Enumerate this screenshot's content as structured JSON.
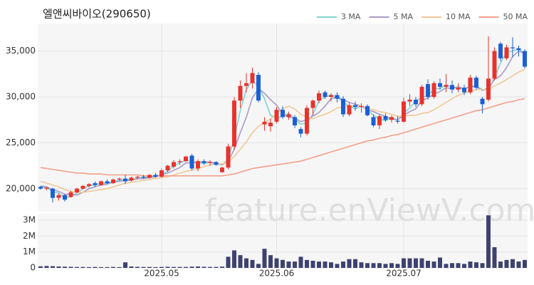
{
  "chart_data": {
    "type": "candlestick",
    "title": "엘앤씨바이오(290650)",
    "watermark": "feature.enViewV.com",
    "up_color": "#e8322c",
    "down_color": "#1a5fd6",
    "volume_color": "#3e4170",
    "grid": true,
    "legend": "top-right",
    "categories": [
      null,
      null,
      null,
      null,
      null,
      null,
      null,
      null,
      null,
      null,
      null,
      null,
      null,
      null,
      null,
      null,
      null,
      null,
      null,
      null,
      "2025.05",
      null,
      null,
      null,
      null,
      null,
      null,
      null,
      null,
      null,
      null,
      null,
      null,
      null,
      null,
      null,
      null,
      null,
      null,
      "2025.06",
      null,
      null,
      null,
      null,
      null,
      null,
      null,
      null,
      null,
      null,
      null,
      null,
      null,
      null,
      null,
      null,
      null,
      null,
      null,
      null,
      "2025.07",
      null,
      null,
      null,
      null,
      null,
      null,
      null,
      null,
      null,
      null,
      null,
      null,
      null,
      null,
      null,
      null,
      null,
      null,
      null,
      null
    ],
    "open": [
      20200,
      20000,
      20000,
      19000,
      19300,
      19100,
      19600,
      20000,
      20300,
      20600,
      20400,
      20800,
      20600,
      21000,
      21100,
      20900,
      21200,
      21300,
      21200,
      21500,
      21300,
      22000,
      22400,
      22900,
      23000,
      23600,
      22200,
      23000,
      22800,
      22900,
      21800,
      22300,
      24600,
      29600,
      31200,
      31500,
      32400,
      27000,
      26800,
      27300,
      28600,
      27800,
      27800,
      26500,
      26000,
      28800,
      29600,
      30500,
      30000,
      30200,
      29800,
      28100,
      29100,
      28900,
      29000,
      27800,
      26900,
      27900,
      27500,
      27400,
      27300,
      29500,
      29700,
      29200,
      31400,
      30000,
      31500,
      31100,
      31300,
      30800,
      31000,
      30500,
      32100,
      29800,
      29700,
      32000,
      35800,
      34200,
      35400,
      35300,
      35000
    ],
    "high": [
      20300,
      20200,
      20100,
      19500,
      19400,
      19800,
      20100,
      20400,
      20600,
      20800,
      20900,
      21000,
      21100,
      21200,
      21500,
      21300,
      21400,
      21500,
      21600,
      21700,
      22200,
      22600,
      23100,
      23200,
      23600,
      23800,
      23200,
      23200,
      23100,
      23000,
      22400,
      24900,
      30000,
      31800,
      32600,
      33200,
      32700,
      27800,
      27600,
      28900,
      29000,
      28400,
      28000,
      26700,
      29100,
      29700,
      30700,
      30700,
      30400,
      30500,
      30100,
      29400,
      29500,
      29300,
      29200,
      28100,
      28100,
      28200,
      28000,
      27900,
      29900,
      30300,
      30000,
      31300,
      31900,
      31700,
      32000,
      32500,
      31800,
      31500,
      31300,
      32400,
      32300,
      30000,
      36600,
      35400,
      36000,
      35700,
      36500,
      35600,
      35200
    ],
    "low": [
      19900,
      19800,
      18500,
      18700,
      18600,
      19000,
      19500,
      19900,
      20100,
      20200,
      20300,
      20500,
      20500,
      20900,
      20500,
      20800,
      21000,
      21100,
      21100,
      21200,
      21200,
      21800,
      22200,
      22600,
      22900,
      22000,
      21900,
      22600,
      22500,
      22500,
      21700,
      22100,
      24200,
      28800,
      30500,
      30900,
      29400,
      26300,
      26200,
      27100,
      27600,
      27500,
      26600,
      25600,
      25800,
      28000,
      29300,
      29800,
      29500,
      29400,
      27800,
      27900,
      28500,
      28300,
      27900,
      26700,
      26500,
      27300,
      27200,
      27100,
      27200,
      29000,
      28900,
      29000,
      29700,
      29800,
      30800,
      30500,
      30400,
      30500,
      30200,
      30300,
      30800,
      28200,
      29500,
      31800,
      33900,
      34000,
      34300,
      34400,
      33100
    ],
    "close": [
      20000,
      20100,
      19000,
      19300,
      18800,
      19600,
      20000,
      20300,
      20500,
      20400,
      20800,
      20600,
      21000,
      21100,
      20800,
      21200,
      21300,
      21200,
      21500,
      21300,
      22000,
      22500,
      22900,
      23000,
      23500,
      22200,
      23000,
      22800,
      22900,
      22600,
      22300,
      24600,
      29600,
      31200,
      31500,
      32600,
      29600,
      27300,
      27200,
      28600,
      27800,
      28100,
      26900,
      26000,
      28800,
      29600,
      30400,
      30000,
      30200,
      29800,
      28100,
      29100,
      28900,
      29000,
      28000,
      26900,
      27900,
      27500,
      27800,
      27300,
      29500,
      29700,
      29200,
      31100,
      30000,
      31500,
      31100,
      31300,
      30800,
      31000,
      30500,
      32100,
      31000,
      29200,
      32000,
      35000,
      34200,
      35400,
      35300,
      35100,
      33300
    ],
    "volume": [
      100000,
      120000,
      110000,
      90000,
      80000,
      70000,
      60000,
      60000,
      50000,
      60000,
      50000,
      50000,
      60000,
      50000,
      350000,
      90000,
      70000,
      60000,
      60000,
      50000,
      60000,
      70000,
      60000,
      60000,
      60000,
      80000,
      90000,
      70000,
      60000,
      60000,
      80000,
      700000,
      1100000,
      800000,
      600000,
      500000,
      250000,
      1200000,
      800000,
      600000,
      500000,
      400000,
      400000,
      700000,
      500000,
      450000,
      400000,
      400000,
      350000,
      250000,
      400000,
      550000,
      550000,
      350000,
      300000,
      300000,
      300000,
      250000,
      300000,
      250000,
      600000,
      600000,
      600000,
      600000,
      450000,
      400000,
      650000,
      250000,
      300000,
      300000,
      250000,
      400000,
      350000,
      300000,
      3300000,
      1300000,
      400000,
      500000,
      550000,
      400000,
      500000
    ],
    "series": [
      {
        "name": "3 MA",
        "color": "#7fd3d3",
        "values": [
          20200,
          20100,
          19700,
          19500,
          19000,
          19200,
          19500,
          20000,
          20300,
          20400,
          20600,
          20600,
          20800,
          20900,
          21000,
          21000,
          21100,
          21200,
          21300,
          21300,
          21600,
          21900,
          22500,
          22800,
          23100,
          22900,
          22900,
          22700,
          22900,
          22800,
          22600,
          23200,
          25500,
          28500,
          30800,
          31800,
          31200,
          29800,
          28000,
          27700,
          27900,
          28200,
          27600,
          27000,
          27200,
          28100,
          29600,
          30000,
          30200,
          30000,
          29400,
          29000,
          28700,
          29000,
          28600,
          28000,
          27600,
          27400,
          27700,
          27500,
          28200,
          28800,
          29500,
          30000,
          30100,
          30900,
          30900,
          31300,
          31100,
          31000,
          30800,
          31200,
          31200,
          30800,
          30700,
          32100,
          33700,
          34900,
          35000,
          35300,
          34600
        ]
      },
      {
        "name": "5 MA",
        "color": "#a79ac8",
        "values": [
          20300,
          20200,
          19900,
          19700,
          19400,
          19400,
          19300,
          19600,
          20000,
          20200,
          20400,
          20500,
          20700,
          20800,
          20900,
          20900,
          21100,
          21100,
          21200,
          21300,
          21500,
          21700,
          22000,
          22300,
          22800,
          22800,
          22900,
          22900,
          22900,
          22700,
          22600,
          23000,
          24300,
          26100,
          27800,
          29900,
          30900,
          30400,
          29700,
          29100,
          28100,
          27800,
          27700,
          27300,
          27500,
          27900,
          28300,
          29000,
          29800,
          30000,
          29700,
          29400,
          29200,
          29000,
          28600,
          28400,
          28100,
          27900,
          27600,
          27500,
          28000,
          28400,
          28700,
          29600,
          29900,
          30300,
          30600,
          31000,
          30900,
          31100,
          30900,
          31100,
          31100,
          30700,
          31000,
          31900,
          32300,
          33200,
          34400,
          35000,
          34700
        ]
      },
      {
        "name": "10 MA",
        "color": "#f0c896",
        "values": [
          20800,
          20600,
          20400,
          20200,
          19900,
          19700,
          19600,
          19600,
          19700,
          19800,
          19900,
          20000,
          20200,
          20400,
          20600,
          20700,
          20800,
          20900,
          21000,
          21100,
          21200,
          21300,
          21500,
          21700,
          21900,
          22000,
          22200,
          22400,
          22600,
          22700,
          22700,
          22900,
          23500,
          24300,
          25100,
          26100,
          26800,
          27200,
          27600,
          28200,
          28700,
          29000,
          28700,
          28100,
          27800,
          27600,
          27900,
          28100,
          28400,
          28800,
          28900,
          29000,
          29000,
          29000,
          28800,
          28600,
          28400,
          28300,
          28100,
          27900,
          27900,
          28000,
          28000,
          28200,
          28300,
          28600,
          29000,
          29400,
          29800,
          30200,
          30400,
          30600,
          30800,
          30800,
          30800,
          31200,
          31500,
          31900,
          32300,
          32700,
          33000
        ]
      },
      {
        "name": "50 MA",
        "color": "#f4a08a",
        "values": [
          22300,
          22200,
          22100,
          22000,
          21900,
          21800,
          21700,
          21700,
          21600,
          21600,
          21600,
          21500,
          21500,
          21500,
          21500,
          21500,
          21500,
          21400,
          21400,
          21400,
          21400,
          21400,
          21400,
          21400,
          21400,
          21400,
          21400,
          21400,
          21400,
          21400,
          21400,
          21500,
          21600,
          21800,
          22000,
          22200,
          22300,
          22400,
          22500,
          22600,
          22700,
          22800,
          22900,
          23000,
          23200,
          23400,
          23600,
          23800,
          24000,
          24200,
          24400,
          24600,
          24800,
          25000,
          25200,
          25300,
          25500,
          25600,
          25800,
          25900,
          26100,
          26300,
          26500,
          26700,
          26900,
          27100,
          27300,
          27500,
          27700,
          27900,
          28100,
          28300,
          28500,
          28600,
          28800,
          29000,
          29200,
          29400,
          29500,
          29700,
          29800
        ]
      }
    ],
    "ylim": [
      17500,
      38000
    ],
    "yticks": [
      {
        "value": 20000,
        "label": "20,000"
      },
      {
        "value": 25000,
        "label": "25,000"
      },
      {
        "value": 30000,
        "label": "30,000"
      },
      {
        "value": 35000,
        "label": "35,000"
      }
    ],
    "volume_ylim": [
      0,
      3400000
    ],
    "volume_yticks": [
      {
        "value": 0,
        "label": "0"
      },
      {
        "value": 1000000,
        "label": "1M"
      },
      {
        "value": 2000000,
        "label": "2M"
      },
      {
        "value": 3000000,
        "label": "3M"
      }
    ]
  }
}
